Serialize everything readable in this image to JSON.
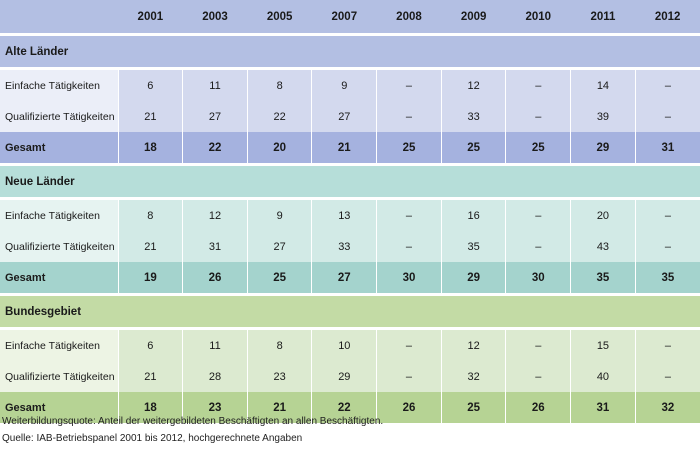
{
  "columns": [
    "2001",
    "2003",
    "2005",
    "2007",
    "2008",
    "2009",
    "2010",
    "2011",
    "2012"
  ],
  "sections": [
    {
      "title": "Alte Länder",
      "rows": [
        {
          "label": "Einfache Tätigkeiten",
          "values": [
            "6",
            "11",
            "8",
            "9",
            "–",
            "12",
            "–",
            "14",
            "–"
          ]
        },
        {
          "label": "Qualifizierte Tätigkeiten",
          "values": [
            "21",
            "27",
            "22",
            "27",
            "–",
            "33",
            "–",
            "39",
            "–"
          ]
        }
      ],
      "total": {
        "label": "Gesamt",
        "values": [
          "18",
          "22",
          "20",
          "21",
          "25",
          "25",
          "25",
          "29",
          "31"
        ]
      }
    },
    {
      "title": "Neue Länder",
      "rows": [
        {
          "label": "Einfache Tätigkeiten",
          "values": [
            "8",
            "12",
            "9",
            "13",
            "–",
            "16",
            "–",
            "20",
            "–"
          ]
        },
        {
          "label": "Qualifizierte Tätigkeiten",
          "values": [
            "21",
            "31",
            "27",
            "33",
            "–",
            "35",
            "–",
            "43",
            "–"
          ]
        }
      ],
      "total": {
        "label": "Gesamt",
        "values": [
          "19",
          "26",
          "25",
          "27",
          "30",
          "29",
          "30",
          "35",
          "35"
        ]
      }
    },
    {
      "title": "Bundesgebiet",
      "rows": [
        {
          "label": "Einfache Tätigkeiten",
          "values": [
            "6",
            "11",
            "8",
            "10",
            "–",
            "12",
            "–",
            "15",
            "–"
          ]
        },
        {
          "label": "Qualifizierte Tätigkeiten",
          "values": [
            "21",
            "28",
            "23",
            "29",
            "–",
            "32",
            "–",
            "40",
            "–"
          ]
        }
      ],
      "total": {
        "label": "Gesamt",
        "values": [
          "18",
          "23",
          "21",
          "22",
          "26",
          "25",
          "26",
          "31",
          "32"
        ]
      }
    }
  ],
  "notes": [
    "Weiterbildungsquote: Anteil der weitergebildeten Beschäftigten an allen Beschäftigten.",
    "Quelle: IAB-Betriebspanel 2001 bis 2012, hochgerechnete Angaben"
  ],
  "colors": {
    "blue_header": "#b3bfe3",
    "teal_section": "#b6ded9",
    "green_section": "#c3dba5"
  }
}
